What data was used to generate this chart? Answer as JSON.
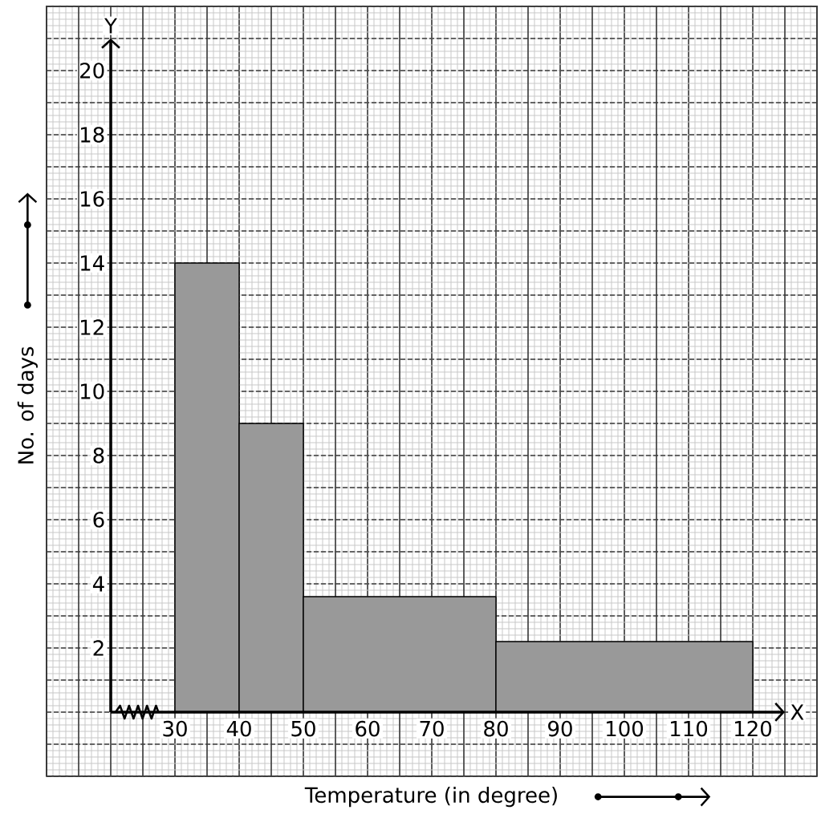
{
  "chart_data": {
    "type": "histogram",
    "xlabel": "Temperature (in degree)",
    "ylabel": "No. of days",
    "bins": [
      30,
      40,
      50,
      80,
      120
    ],
    "values": [
      14,
      9,
      3.6,
      2.2
    ],
    "color": "#999999",
    "xlim": [
      10,
      130
    ],
    "ylim": [
      -2,
      22
    ],
    "xticks": [
      30,
      40,
      50,
      60,
      70,
      80,
      90,
      100,
      110,
      120
    ],
    "yticks": [
      2,
      4,
      6,
      8,
      10,
      12,
      14,
      16,
      18,
      20
    ],
    "grid": true,
    "annotations": [
      "X",
      "Y"
    ]
  }
}
